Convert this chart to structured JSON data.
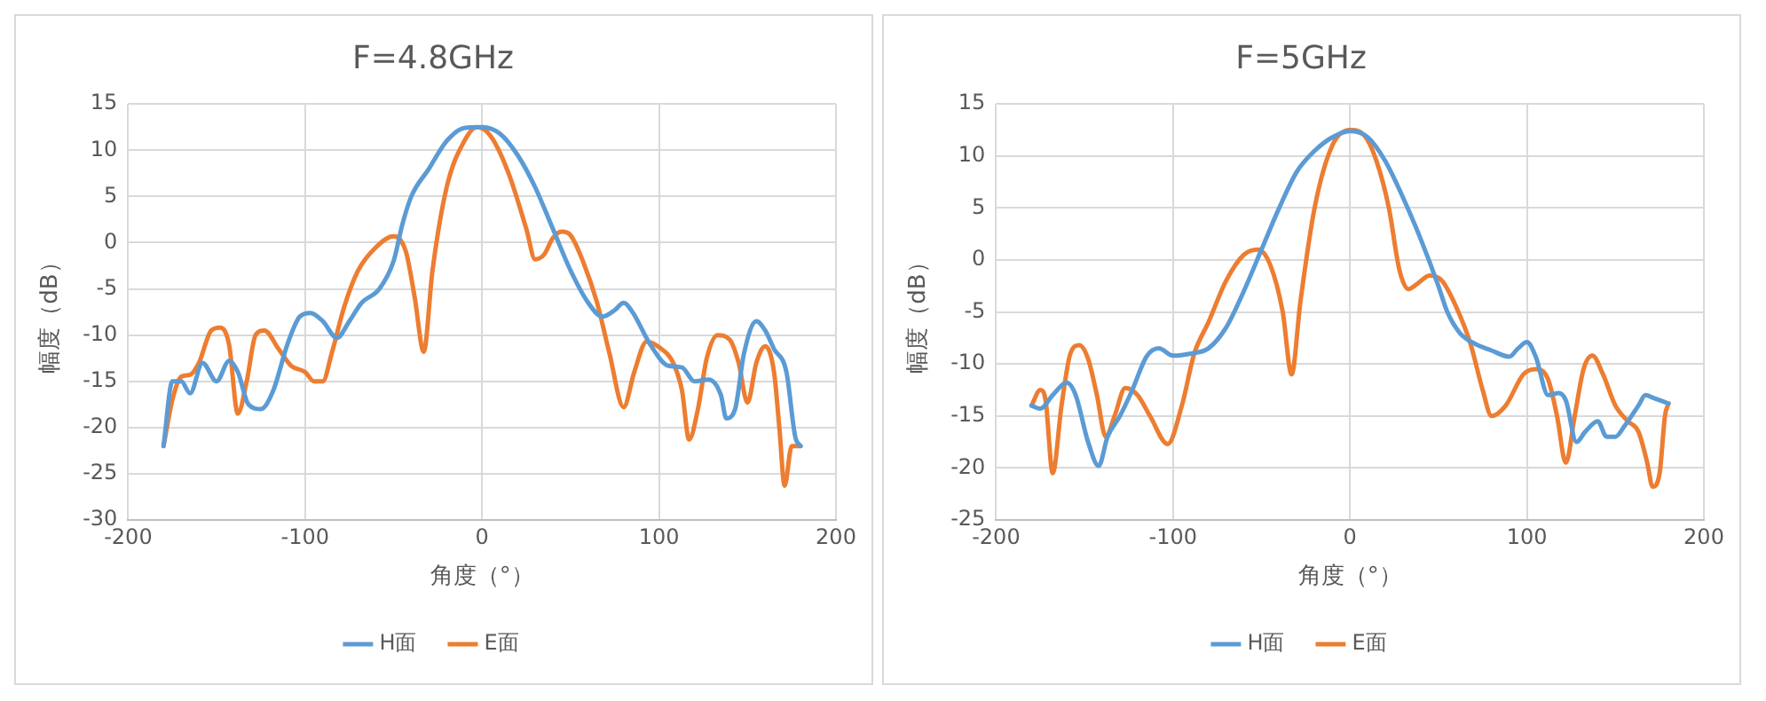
{
  "chart_data": [
    {
      "type": "line",
      "title": "F=4.8GHz",
      "xlabel": "角度（°）",
      "ylabel": "幅度（dB）",
      "xlim": [
        -200,
        200
      ],
      "xticks": [
        -200,
        -100,
        0,
        100,
        200
      ],
      "ylim": [
        -30,
        15
      ],
      "yticks": [
        -30,
        -25,
        -20,
        -15,
        -10,
        -5,
        0,
        5,
        10,
        15
      ],
      "grid": true,
      "legend": "bottom",
      "marker": "none",
      "line_style": "solid",
      "series": [
        {
          "name": "H面",
          "color": "#5b9bd5",
          "x": [
            -180,
            -175,
            -170,
            -165,
            -158,
            -150,
            -143,
            -138,
            -132,
            -125,
            -118,
            -110,
            -103,
            -97,
            -90,
            -82,
            -75,
            -68,
            -58,
            -50,
            -45,
            -40,
            -30,
            -20,
            -10,
            0,
            10,
            20,
            30,
            40,
            50,
            60,
            68,
            75,
            80,
            85,
            95,
            105,
            113,
            120,
            128,
            135,
            138,
            143,
            148,
            155,
            160,
            165,
            172,
            177,
            180
          ],
          "values": [
            -22,
            -15,
            -15,
            -16.3,
            -13,
            -15,
            -12.8,
            -14,
            -17.5,
            -18,
            -16,
            -11,
            -8,
            -7.6,
            -8.5,
            -10.3,
            -8.5,
            -6.5,
            -5,
            -2,
            2,
            5,
            8,
            11,
            12.4,
            12.5,
            11.8,
            9.5,
            6,
            1.5,
            -3,
            -6.5,
            -8,
            -7.3,
            -6.5,
            -7.5,
            -11,
            -13.3,
            -13.5,
            -15,
            -14.8,
            -16.5,
            -19,
            -18,
            -12,
            -8.5,
            -9.5,
            -11.5,
            -14,
            -21,
            -22
          ]
        },
        {
          "name": "E面",
          "color": "#ed7d31",
          "x": [
            -180,
            -175,
            -170,
            -165,
            -160,
            -153,
            -148,
            -143,
            -138,
            -133,
            -128,
            -123,
            -115,
            -108,
            -100,
            -95,
            -90,
            -85,
            -78,
            -70,
            -60,
            -50,
            -43,
            -38,
            -33,
            -28,
            -20,
            -10,
            -3,
            5,
            15,
            25,
            30,
            35,
            40,
            45,
            50,
            57,
            65,
            72,
            80,
            86,
            93,
            100,
            108,
            113,
            117,
            122,
            127,
            133,
            140,
            145,
            150,
            155,
            160,
            165,
            168,
            171,
            175,
            180
          ],
          "values": [
            -22,
            -17,
            -14.5,
            -14.3,
            -13,
            -9.5,
            -9.2,
            -11,
            -18.5,
            -15,
            -10,
            -9.5,
            -11.5,
            -13.3,
            -14,
            -15,
            -15,
            -12,
            -7,
            -3,
            -0.5,
            0.7,
            -1,
            -6,
            -11.8,
            -3,
            6,
            11,
            12.5,
            11.5,
            7.5,
            1.5,
            -1.8,
            -1.3,
            0.5,
            1.2,
            0.8,
            -2,
            -6.5,
            -12,
            -17.8,
            -14,
            -10.7,
            -11.3,
            -13,
            -16,
            -21.3,
            -18,
            -12.5,
            -10,
            -10.5,
            -13,
            -17.3,
            -13,
            -11.2,
            -14,
            -20,
            -26.3,
            -22,
            -22
          ]
        }
      ]
    },
    {
      "type": "line",
      "title": "F=5GHz",
      "xlabel": "角度（°）",
      "ylabel": "幅度（dB）",
      "xlim": [
        -200,
        200
      ],
      "xticks": [
        -200,
        -100,
        0,
        100,
        200
      ],
      "ylim": [
        -25,
        15
      ],
      "yticks": [
        -25,
        -20,
        -15,
        -10,
        -5,
        0,
        5,
        10,
        15
      ],
      "grid": true,
      "legend": "bottom",
      "marker": "none",
      "line_style": "solid",
      "series": [
        {
          "name": "H面",
          "color": "#5b9bd5",
          "x": [
            -180,
            -175,
            -168,
            -160,
            -155,
            -148,
            -142,
            -137,
            -130,
            -123,
            -115,
            -108,
            -100,
            -90,
            -80,
            -70,
            -60,
            -50,
            -40,
            -30,
            -20,
            -10,
            0,
            10,
            20,
            30,
            40,
            50,
            55,
            62,
            70,
            80,
            90,
            95,
            100,
            105,
            112,
            118,
            122,
            128,
            133,
            140,
            145,
            150,
            155,
            163,
            167,
            172,
            180
          ],
          "values": [
            -14,
            -14.3,
            -13,
            -11.8,
            -13,
            -17.5,
            -19.8,
            -17,
            -15,
            -12.5,
            -9.3,
            -8.5,
            -9.2,
            -9,
            -8.5,
            -6.5,
            -3,
            1,
            5,
            8.5,
            10.5,
            11.8,
            12.4,
            11.8,
            9.5,
            6,
            2,
            -2.5,
            -5,
            -7,
            -8,
            -8.7,
            -9.3,
            -8.5,
            -7.9,
            -9.3,
            -13,
            -12.8,
            -13.5,
            -17.5,
            -16.5,
            -15.5,
            -17,
            -17,
            -16,
            -14,
            -13,
            -13.3,
            -13.8
          ]
        },
        {
          "name": "E面",
          "color": "#ed7d31",
          "x": [
            -180,
            -175,
            -172,
            -168,
            -163,
            -158,
            -153,
            -148,
            -143,
            -138,
            -133,
            -127,
            -120,
            -113,
            -103,
            -95,
            -88,
            -80,
            -70,
            -60,
            -52,
            -45,
            -38,
            -33,
            -28,
            -20,
            -10,
            0,
            8,
            15,
            22,
            28,
            33,
            38,
            45,
            52,
            60,
            68,
            75,
            80,
            88,
            98,
            105,
            112,
            117,
            122,
            127,
            132,
            137,
            143,
            150,
            157,
            163,
            168,
            171,
            175,
            178,
            180
          ],
          "values": [
            -14,
            -12.5,
            -13.5,
            -20.5,
            -14,
            -9,
            -8.2,
            -9.5,
            -13,
            -17,
            -15,
            -12.3,
            -13,
            -15,
            -17.7,
            -14,
            -9,
            -6,
            -2,
            0.5,
            1,
            -0.5,
            -5,
            -11,
            -4,
            5,
            11,
            12.5,
            12,
            9.5,
            5,
            -1,
            -2.8,
            -2.3,
            -1.5,
            -2,
            -4.5,
            -8,
            -12.5,
            -15,
            -14,
            -11,
            -10.5,
            -11.5,
            -15,
            -19.5,
            -15,
            -10.5,
            -9.2,
            -11,
            -14,
            -15.5,
            -16.5,
            -19.5,
            -21.8,
            -20.5,
            -15,
            -13.8
          ]
        }
      ]
    }
  ]
}
